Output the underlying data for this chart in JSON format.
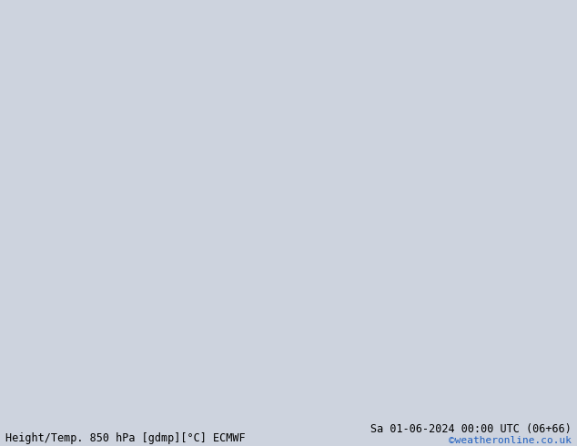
{
  "title_left": "Height/Temp. 850 hPa [gdmp][°C] ECMWF",
  "title_right": "Sa 01-06-2024 00:00 UTC (06+66)",
  "credit": "©weatheronline.co.uk",
  "bg_color": "#cdd3de",
  "ocean_color": "#cdd3de",
  "land_color": "#b8b8b8",
  "aus_fill_color": "#b8f0a8",
  "lon_min": 90,
  "lon_max": 180,
  "lat_min": -60,
  "lat_max": 10,
  "figsize": [
    6.34,
    4.9
  ],
  "dpi": 100
}
